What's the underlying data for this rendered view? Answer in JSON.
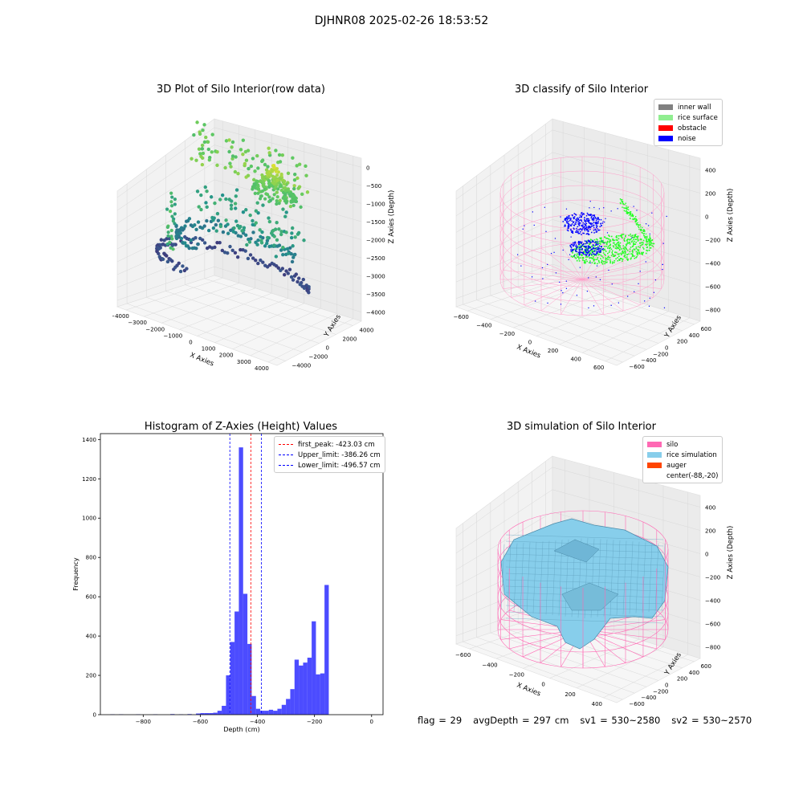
{
  "figure": {
    "suptitle": "DJHNR08 2025-02-26 18:53:52",
    "status": {
      "flag": "flag = 29",
      "avg_depth": "avgDepth = 297 cm",
      "sv1": "sv1 = 530~2580",
      "sv2": "sv2 = 530~2570"
    }
  },
  "chart_data": [
    {
      "type": "scatter",
      "title": "3D Plot of Silo Interior(row data)",
      "xlabel": "X Axies",
      "ylabel": "Y Axies",
      "zlabel": "Z Axies (Depth)",
      "x_ticks": [
        "−4000",
        "−3000",
        "−2000",
        "−1000",
        "0",
        "1000",
        "2000",
        "3000",
        "4000"
      ],
      "y_ticks": [
        "−4000",
        "−2000",
        "0",
        "2000",
        "4000"
      ],
      "z_ticks": [
        "0",
        "−500",
        "−1000",
        "−1500",
        "−2000",
        "−2500",
        "−3000",
        "−3500",
        "−4000"
      ],
      "xlim": [
        -4500,
        4500
      ],
      "ylim": [
        -4500,
        4500
      ],
      "zlim": [
        -4200,
        0
      ],
      "colormap": "viridis"
    },
    {
      "type": "scatter",
      "title": "3D classify of Silo Interior",
      "xlabel": "X Axies",
      "ylabel": "Y Axies",
      "zlabel": "Z Axies (Depth)",
      "x_ticks": [
        "−600",
        "−400",
        "−200",
        "0",
        "200",
        "400",
        "600"
      ],
      "y_ticks": [
        "−600",
        "−400",
        "−200",
        "0",
        "200",
        "400",
        "600"
      ],
      "z_ticks": [
        "400",
        "200",
        "0",
        "−200",
        "−400",
        "−600",
        "−800"
      ],
      "legend": [
        {
          "label": "inner wall",
          "color": "#808080"
        },
        {
          "label": "rice surface",
          "color": "#90ee90"
        },
        {
          "label": "obstacle",
          "color": "#ff0000"
        },
        {
          "label": "noise",
          "color": "#0000ff"
        }
      ]
    },
    {
      "type": "bar",
      "title": "Histogram of Z-Axies (Height) Values",
      "xlabel": "Depth (cm)",
      "ylabel": "Frequency",
      "xlim": [
        -950,
        40
      ],
      "ylim": [
        0,
        1430
      ],
      "x_ticks": [
        -800,
        -600,
        -400,
        -200,
        0
      ],
      "x_tick_labels": [
        "−800",
        "−600",
        "−400",
        "−200",
        "0"
      ],
      "y_ticks": [
        0,
        200,
        400,
        600,
        800,
        1000,
        1200,
        1400
      ],
      "bar_color": "#0000ff",
      "bin_width": 15,
      "bin_starts": [
        -915,
        -885,
        -855,
        -825,
        -795,
        -765,
        -735,
        -705,
        -675,
        -645,
        -615,
        -600,
        -585,
        -570,
        -555,
        -540,
        -525,
        -510,
        -495,
        -480,
        -465,
        -450,
        -435,
        -420,
        -405,
        -390,
        -375,
        -360,
        -345,
        -330,
        -315,
        -300,
        -285,
        -270,
        -255,
        -240,
        -225,
        -210,
        -195,
        -180,
        -165,
        -150,
        -135,
        -120,
        -105,
        -90,
        -75,
        -60,
        -45,
        -30,
        -15
      ],
      "counts": [
        2,
        2,
        0,
        2,
        0,
        2,
        0,
        3,
        2,
        3,
        6,
        8,
        8,
        8,
        10,
        20,
        45,
        200,
        370,
        525,
        1360,
        615,
        360,
        95,
        30,
        20,
        20,
        25,
        20,
        30,
        50,
        80,
        130,
        280,
        250,
        265,
        290,
        475,
        205,
        210,
        660,
        0,
        0,
        0,
        0,
        0,
        0,
        0,
        0,
        0,
        0
      ],
      "lines": [
        {
          "label": "first_peak: -423.03 cm",
          "x": -423.03,
          "color": "#ff0000"
        },
        {
          "label": "Upper_limit: -386.26 cm",
          "x": -386.26,
          "color": "#0000ff"
        },
        {
          "label": "Lower_limit: -496.57 cm",
          "x": -496.57,
          "color": "#0000ff"
        }
      ]
    },
    {
      "type": "surface",
      "title": "3D simulation of Silo Interior",
      "xlabel": "X Axies",
      "ylabel": "Y Axies",
      "zlabel": "Z Axies (Depth)",
      "x_ticks": [
        "−600",
        "−400",
        "−200",
        "0",
        "200",
        "400"
      ],
      "y_ticks": [
        "−600",
        "−400",
        "−200",
        "0",
        "200",
        "400",
        "600"
      ],
      "z_ticks": [
        "400",
        "200",
        "0",
        "−200",
        "−400",
        "−600",
        "−800"
      ],
      "legend": [
        {
          "label": "silo",
          "color": "#ff69b4"
        },
        {
          "label": "rice simulation",
          "color": "#87ceeb"
        },
        {
          "label": "auger",
          "color": "#ff4500"
        },
        {
          "label": "center(-88,-20)",
          "color": "none"
        }
      ]
    }
  ]
}
